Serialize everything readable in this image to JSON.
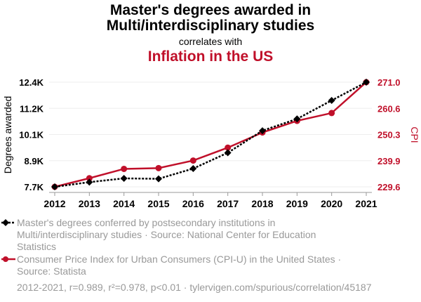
{
  "title_line1": "Master's degrees awarded in",
  "title_line2": "Multi/interdisciplinary studies",
  "correlates_with": "correlates with",
  "title2": "Inflation in the US",
  "colors": {
    "series1": "#000000",
    "series2": "#c0102a",
    "grid": "#eeeeee",
    "legend_text": "#999999"
  },
  "chart_data": {
    "type": "line",
    "x": [
      2012,
      2013,
      2014,
      2015,
      2016,
      2017,
      2018,
      2019,
      2020,
      2021
    ],
    "x_tick_labels": [
      "2012",
      "2013",
      "2014",
      "2015",
      "2016",
      "2017",
      "2018",
      "2019",
      "2020",
      "2021"
    ],
    "ylabel_left": "Degrees awarded",
    "ylabel_right": "CPI",
    "ylim_left": [
      7.7,
      12.4
    ],
    "ylim_right": [
      229.6,
      271.0
    ],
    "left_tick_values": [
      7.7,
      8.875,
      10.05,
      11.225,
      12.4
    ],
    "left_tick_labels": [
      "7.7K",
      "8.9K",
      "10.1K",
      "11.2K",
      "12.4K"
    ],
    "right_tick_values": [
      229.6,
      239.95,
      250.3,
      260.65,
      271.0
    ],
    "right_tick_labels": [
      "229.6",
      "239.9",
      "250.3",
      "260.6",
      "271.0"
    ],
    "grid": true,
    "series": [
      {
        "name": "Master's degrees conferred by postsecondary institutions in Multi/interdisciplinary studies · Source: National Center for Education Statistics",
        "axis": "left",
        "marker": "diamond",
        "style": "dotted",
        "values": [
          7.7,
          7.91,
          8.08,
          8.06,
          8.52,
          9.23,
          10.22,
          10.75,
          11.58,
          12.4
        ]
      },
      {
        "name": "Consumer Price Index for Urban Consumers (CPI-U) in the United States · Source: Statista",
        "axis": "right",
        "marker": "circle",
        "style": "solid",
        "values": [
          229.6,
          233.0,
          236.7,
          237.0,
          240.0,
          245.1,
          251.1,
          255.7,
          258.8,
          271.0
        ]
      }
    ]
  },
  "legend": {
    "item1_line1": "Master's degrees conferred by postsecondary institutions in",
    "item1_line2": "Multi/interdisciplinary studies · Source: National Center for Education",
    "item1_line3": "Statistics",
    "item2_line1": "Consumer Price Index for Urban Consumers (CPI-U) in the United States ·",
    "item2_line2": "Source: Statista"
  },
  "footer": "2012-2021, r=0.989, r²=0.978, p<0.01 · tylervigen.com/spurious/correlation/45187"
}
